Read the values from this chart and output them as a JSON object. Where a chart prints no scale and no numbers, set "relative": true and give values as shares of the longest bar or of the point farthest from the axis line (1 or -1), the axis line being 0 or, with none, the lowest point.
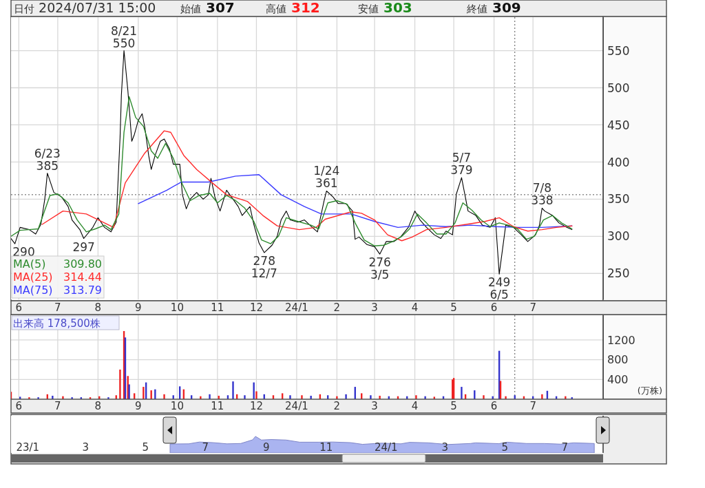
{
  "chart_data": [
    {
      "type": "line",
      "title": "日付 2024/07/31 15:00",
      "annotations": [
        "始値 307",
        "高値 312",
        "安値 303",
        "終値 309",
        {
          "text": "8/21\n550",
          "x": "2023-08-21",
          "y": 550
        },
        {
          "text": "6/23\n385",
          "x": "2023-06-23",
          "y": 385
        },
        {
          "text": "1/24\n361",
          "x": "2024-01-24",
          "y": 361
        },
        {
          "text": "5/7\n379",
          "x": "2024-05-07",
          "y": 379
        },
        {
          "text": "7/8\n338",
          "x": "2024-07-08",
          "y": 338
        },
        {
          "text": "290",
          "x": "2023-05-29",
          "y": 290
        },
        {
          "text": "297",
          "x": "2023-07-21",
          "y": 297
        },
        {
          "text": "278\n12/7",
          "x": "2023-12-07",
          "y": 278
        },
        {
          "text": "276\n3/5",
          "x": "2024-03-05",
          "y": 276
        },
        {
          "text": "249\n6/5",
          "x": "2024-06-05",
          "y": 249
        }
      ],
      "series": [
        {
          "color": "#000000",
          "x": [
            "2023-05-26",
            "2023-05-29",
            "2023-06-02",
            "2023-06-09",
            "2023-06-14",
            "2023-06-18",
            "2023-06-21",
            "2023-06-23",
            "2023-06-28",
            "2023-07-04",
            "2023-07-09",
            "2023-07-12",
            "2023-07-18",
            "2023-07-21",
            "2023-07-28",
            "2023-08-01",
            "2023-08-06",
            "2023-08-11",
            "2023-08-15",
            "2023-08-18",
            "2023-08-19",
            "2023-08-21",
            "2023-08-24",
            "2023-08-27",
            "2023-08-29",
            "2023-09-01",
            "2023-09-04",
            "2023-09-06",
            "2023-09-09",
            "2023-09-11",
            "2023-09-14",
            "2023-09-18",
            "2023-09-21",
            "2023-09-25",
            "2023-09-28",
            "2023-10-03",
            "2023-10-05",
            "2023-10-08",
            "2023-10-11",
            "2023-10-16",
            "2023-10-21",
            "2023-10-25",
            "2023-10-27",
            "2023-10-30",
            "2023-11-03",
            "2023-11-08",
            "2023-11-13",
            "2023-11-17",
            "2023-11-20",
            "2023-11-26",
            "2023-11-29",
            "2023-12-03",
            "2023-12-07",
            "2023-12-13",
            "2023-12-17",
            "2023-12-20",
            "2023-12-24",
            "2023-12-27",
            "2024-01-02",
            "2024-01-07",
            "2024-01-13",
            "2024-01-17",
            "2024-01-22",
            "2024-01-24",
            "2024-01-29",
            "2024-02-02",
            "2024-02-08",
            "2024-02-13",
            "2024-02-15",
            "2024-02-18",
            "2024-02-24",
            "2024-03-01",
            "2024-03-05",
            "2024-03-10",
            "2024-03-16",
            "2024-03-21",
            "2024-03-27",
            "2024-04-01",
            "2024-04-05",
            "2024-04-10",
            "2024-04-16",
            "2024-04-21",
            "2024-04-25",
            "2024-04-30",
            "2024-05-03",
            "2024-05-07",
            "2024-05-12",
            "2024-05-18",
            "2024-05-23",
            "2024-05-29",
            "2024-06-02",
            "2024-06-05",
            "2024-06-10",
            "2024-06-16",
            "2024-06-22",
            "2024-06-27",
            "2024-07-03",
            "2024-07-06",
            "2024-07-08",
            "2024-07-10",
            "2024-07-16",
            "2024-07-21",
            "2024-07-27",
            "2024-07-31"
          ],
          "values": [
            297,
            290,
            312,
            309,
            303,
            316,
            350,
            385,
            359,
            353,
            340,
            322,
            309,
            297,
            312,
            325,
            312,
            306,
            319,
            434,
            490,
            550,
            496,
            428,
            437,
            456,
            465,
            447,
            409,
            390,
            409,
            428,
            431,
            418,
            397,
            397,
            356,
            337,
            350,
            359,
            350,
            356,
            378,
            353,
            334,
            362,
            350,
            340,
            328,
            340,
            316,
            291,
            278,
            288,
            300,
            322,
            334,
            322,
            319,
            322,
            312,
            306,
            347,
            361,
            353,
            344,
            344,
            334,
            296,
            299,
            289,
            286,
            276,
            293,
            293,
            299,
            312,
            334,
            322,
            312,
            302,
            297,
            307,
            302,
            357,
            379,
            334,
            328,
            315,
            312,
            325,
            249,
            315,
            312,
            302,
            293,
            302,
            315,
            338,
            334,
            328,
            318,
            312,
            309
          ]
        },
        {
          "name": "MA(5) 309.80",
          "color": "#2e8b2e",
          "x": [
            "2023-05-26",
            "2023-06-02",
            "2023-06-09",
            "2023-06-16",
            "2023-06-21",
            "2023-06-25",
            "2023-07-01",
            "2023-07-09",
            "2023-07-16",
            "2023-07-23",
            "2023-07-30",
            "2023-08-06",
            "2023-08-11",
            "2023-08-17",
            "2023-08-21",
            "2023-08-25",
            "2023-08-30",
            "2023-09-05",
            "2023-09-11",
            "2023-09-16",
            "2023-09-22",
            "2023-09-28",
            "2023-10-05",
            "2023-10-11",
            "2023-10-18",
            "2023-10-26",
            "2023-11-01",
            "2023-11-08",
            "2023-11-15",
            "2023-11-22",
            "2023-11-29",
            "2023-12-05",
            "2023-12-12",
            "2023-12-18",
            "2023-12-24",
            "2024-01-02",
            "2024-01-12",
            "2024-01-18",
            "2024-01-25",
            "2024-02-01",
            "2024-02-09",
            "2024-02-15",
            "2024-02-22",
            "2024-03-01",
            "2024-03-08",
            "2024-03-15",
            "2024-03-22",
            "2024-03-28",
            "2024-04-03",
            "2024-04-10",
            "2024-04-18",
            "2024-04-25",
            "2024-05-02",
            "2024-05-08",
            "2024-05-15",
            "2024-05-22",
            "2024-05-29",
            "2024-06-05",
            "2024-06-12",
            "2024-06-19",
            "2024-06-26",
            "2024-07-02",
            "2024-07-09",
            "2024-07-16",
            "2024-07-23",
            "2024-07-31"
          ],
          "values": [
            300,
            308,
            309,
            310,
            335,
            355,
            357,
            345,
            322,
            306,
            310,
            315,
            309,
            330,
            440,
            488,
            460,
            448,
            415,
            405,
            425,
            405,
            370,
            348,
            355,
            358,
            345,
            355,
            348,
            338,
            320,
            295,
            290,
            300,
            325,
            320,
            315,
            310,
            345,
            348,
            343,
            318,
            295,
            287,
            288,
            293,
            300,
            310,
            330,
            318,
            303,
            303,
            318,
            345,
            335,
            322,
            313,
            318,
            315,
            310,
            296,
            300,
            322,
            328,
            318,
            310
          ]
        },
        {
          "name": "MA(25) 314.44",
          "color": "#ff2a2a",
          "x": [
            "2023-06-19",
            "2023-07-05",
            "2023-07-23",
            "2023-08-13",
            "2023-08-22",
            "2023-09-06",
            "2023-09-21",
            "2023-09-26",
            "2023-10-06",
            "2023-10-16",
            "2023-10-28",
            "2023-11-08",
            "2023-11-24",
            "2023-12-06",
            "2023-12-17",
            "2024-01-03",
            "2024-01-16",
            "2024-01-23",
            "2024-02-12",
            "2024-02-20",
            "2024-03-01",
            "2024-03-11",
            "2024-03-22",
            "2024-03-30",
            "2024-04-10",
            "2024-04-25",
            "2024-05-14",
            "2024-05-25",
            "2024-06-05",
            "2024-06-16",
            "2024-06-27",
            "2024-07-08",
            "2024-07-19",
            "2024-07-31"
          ],
          "values": [
            316,
            334,
            330,
            312,
            372,
            412,
            442,
            440,
            409,
            390,
            372,
            356,
            347,
            328,
            314,
            309,
            312,
            323,
            333,
            331,
            322,
            302,
            294,
            299,
            309,
            312,
            317,
            320,
            325,
            313,
            307,
            309,
            312,
            314
          ]
        },
        {
          "name": "MA(75) 313.79",
          "color": "#3a3aff",
          "x": [
            "2023-09-01",
            "2023-09-23",
            "2023-10-04",
            "2023-10-25",
            "2023-11-15",
            "2023-12-03",
            "2023-12-20",
            "2024-01-07",
            "2024-01-20",
            "2024-02-12",
            "2024-03-01",
            "2024-03-19",
            "2024-04-07",
            "2024-04-25",
            "2024-05-14",
            "2024-06-02",
            "2024-06-20",
            "2024-07-08",
            "2024-07-31"
          ],
          "values": [
            344,
            362,
            373,
            373,
            381,
            383,
            356,
            340,
            330,
            330,
            320,
            312,
            315,
            313,
            315,
            313,
            312,
            312,
            314
          ]
        }
      ],
      "xlim": [
        "2023-05-26",
        "2024-08-24"
      ],
      "xticks": [
        {
          "value": "2023-06-01",
          "label": "6"
        },
        {
          "value": "2023-07-01",
          "label": "7"
        },
        {
          "value": "2023-08-01",
          "label": "8"
        },
        {
          "value": "2023-09-01",
          "label": "9"
        },
        {
          "value": "2023-10-01",
          "label": "10"
        },
        {
          "value": "2023-11-01",
          "label": "11"
        },
        {
          "value": "2023-12-01",
          "label": "12"
        },
        {
          "value": "2024-01-01",
          "label": "24/1"
        },
        {
          "value": "2024-02-01",
          "label": "2"
        },
        {
          "value": "2024-03-01",
          "label": "3"
        },
        {
          "value": "2024-04-01",
          "label": "4"
        },
        {
          "value": "2024-05-01",
          "label": "5"
        },
        {
          "value": "2024-06-01",
          "label": "6"
        },
        {
          "value": "2024-07-01",
          "label": "7"
        }
      ],
      "ylim": [
        215,
        595
      ],
      "yticks": [
        250,
        300,
        350,
        400,
        450,
        500,
        550
      ],
      "grid": true,
      "legend": "bottom left",
      "ref_lines": [
        {
          "axis": "y",
          "value": 356,
          "line_style": "dotted"
        },
        {
          "axis": "x",
          "value": "2024-06-17",
          "line_style": "dotted"
        }
      ]
    },
    {
      "type": "bar",
      "title": "出来高 178,500株",
      "ylabel": "(万株)",
      "x": [
        "2023-05-26",
        "2023-06-02",
        "2023-06-09",
        "2023-06-16",
        "2023-06-23",
        "2023-06-27",
        "2023-07-05",
        "2023-07-12",
        "2023-07-19",
        "2023-07-26",
        "2023-08-02",
        "2023-08-09",
        "2023-08-15",
        "2023-08-18",
        "2023-08-21",
        "2023-08-22",
        "2023-08-24",
        "2023-08-25",
        "2023-08-29",
        "2023-09-05",
        "2023-09-07",
        "2023-09-11",
        "2023-09-14",
        "2023-09-21",
        "2023-09-28",
        "2023-10-03",
        "2023-10-06",
        "2023-10-12",
        "2023-10-19",
        "2023-10-26",
        "2023-11-02",
        "2023-11-09",
        "2023-11-13",
        "2023-11-16",
        "2023-11-22",
        "2023-11-29",
        "2023-12-01",
        "2023-12-07",
        "2023-12-14",
        "2023-12-21",
        "2023-12-27",
        "2024-01-05",
        "2024-01-12",
        "2024-01-19",
        "2024-01-25",
        "2024-02-01",
        "2024-02-08",
        "2024-02-15",
        "2024-02-20",
        "2024-02-27",
        "2024-03-05",
        "2024-03-12",
        "2024-03-19",
        "2024-03-26",
        "2024-04-02",
        "2024-04-09",
        "2024-04-16",
        "2024-04-23",
        "2024-04-30",
        "2024-05-01",
        "2024-05-07",
        "2024-05-10",
        "2024-05-17",
        "2024-05-24",
        "2024-05-31",
        "2024-06-05",
        "2024-06-06",
        "2024-06-10",
        "2024-06-17",
        "2024-06-24",
        "2024-07-01",
        "2024-07-08",
        "2024-07-12",
        "2024-07-19",
        "2024-07-26",
        "2024-07-31"
      ],
      "values": [
        150,
        50,
        40,
        40,
        100,
        70,
        60,
        40,
        40,
        40,
        60,
        40,
        80,
        600,
        1380,
        1250,
        470,
        300,
        120,
        250,
        340,
        180,
        200,
        100,
        80,
        260,
        200,
        80,
        60,
        100,
        70,
        80,
        360,
        100,
        80,
        340,
        160,
        100,
        80,
        120,
        80,
        80,
        70,
        100,
        80,
        60,
        100,
        250,
        120,
        80,
        70,
        60,
        60,
        60,
        80,
        60,
        50,
        60,
        400,
        430,
        250,
        100,
        180,
        80,
        60,
        980,
        370,
        60,
        80,
        60,
        60,
        100,
        170,
        60,
        60,
        40
      ],
      "colors": [
        "#ee2222",
        "#3333cc",
        "#ee2222",
        "#3333cc",
        "#ee2222",
        "#3333cc",
        "#ee2222",
        "#3333cc",
        "#3333cc",
        "#ee2222",
        "#ee2222",
        "#3333cc",
        "#ee2222",
        "#ee2222",
        "#ee2222",
        "#3333cc",
        "#ee2222",
        "#3333cc",
        "#ee2222",
        "#ee2222",
        "#3333cc",
        "#ee2222",
        "#3333cc",
        "#ee2222",
        "#3333cc",
        "#3333cc",
        "#ee2222",
        "#3333cc",
        "#ee2222",
        "#3333cc",
        "#ee2222",
        "#3333cc",
        "#3333cc",
        "#ee2222",
        "#3333cc",
        "#3333cc",
        "#ee2222",
        "#3333cc",
        "#ee2222",
        "#ee2222",
        "#3333cc",
        "#ee2222",
        "#3333cc",
        "#ee2222",
        "#3333cc",
        "#ee2222",
        "#3333cc",
        "#3333cc",
        "#ee2222",
        "#3333cc",
        "#ee2222",
        "#3333cc",
        "#ee2222",
        "#3333cc",
        "#ee2222",
        "#3333cc",
        "#ee2222",
        "#3333cc",
        "#ee2222",
        "#ee2222",
        "#3333cc",
        "#ee2222",
        "#3333cc",
        "#ee2222",
        "#3333cc",
        "#3333cc",
        "#ee2222",
        "#ee2222",
        "#3333cc",
        "#ee2222",
        "#3333cc",
        "#ee2222",
        "#3333cc",
        "#3333cc",
        "#ee2222",
        "#3333cc"
      ],
      "xlim": [
        "2023-05-26",
        "2024-08-24"
      ],
      "xticks": [
        {
          "value": "2023-06-01",
          "label": "6"
        },
        {
          "value": "2023-07-01",
          "label": "7"
        },
        {
          "value": "2023-08-01",
          "label": "8"
        },
        {
          "value": "2023-09-01",
          "label": "9"
        },
        {
          "value": "2023-10-01",
          "label": "10"
        },
        {
          "value": "2023-11-01",
          "label": "11"
        },
        {
          "value": "2023-12-01",
          "label": "12"
        },
        {
          "value": "2024-01-01",
          "label": "24/1"
        },
        {
          "value": "2024-02-01",
          "label": "2"
        },
        {
          "value": "2024-03-01",
          "label": "3"
        },
        {
          "value": "2024-04-01",
          "label": "4"
        },
        {
          "value": "2024-05-01",
          "label": "5"
        },
        {
          "value": "2024-06-01",
          "label": "6"
        },
        {
          "value": "2024-07-01",
          "label": "7"
        }
      ],
      "ylim": [
        0,
        1700
      ],
      "yticks": [
        400,
        800,
        1200
      ],
      "grid": true,
      "ref_lines": [
        {
          "axis": "x",
          "value": "2024-06-17",
          "line_style": "dotted"
        }
      ]
    },
    {
      "type": "area",
      "relative": true,
      "color": "#aab4f0",
      "x": [
        "2023-05-26",
        "2023-06-14",
        "2023-06-25",
        "2023-07-09",
        "2023-07-23",
        "2023-08-06",
        "2023-08-18",
        "2023-08-21",
        "2023-08-27",
        "2023-09-06",
        "2023-09-21",
        "2023-10-05",
        "2023-10-25",
        "2023-11-08",
        "2023-11-26",
        "2023-12-08",
        "2023-12-27",
        "2024-01-16",
        "2024-01-25",
        "2024-02-13",
        "2024-03-04",
        "2024-03-27",
        "2024-04-01",
        "2024-04-25",
        "2024-05-03",
        "2024-05-23",
        "2024-06-10",
        "2024-06-27",
        "2024-07-10",
        "2024-07-31"
      ],
      "values": [
        0.54,
        0.55,
        0.66,
        0.62,
        0.55,
        0.57,
        0.79,
        1,
        0.78,
        0.81,
        0.78,
        0.65,
        0.65,
        0.66,
        0.62,
        0.52,
        0.59,
        0.55,
        0.64,
        0.61,
        0.51,
        0.57,
        0.61,
        0.56,
        0.65,
        0.57,
        0.57,
        0.53,
        0.61,
        0.57
      ],
      "xlim": [
        "2022-12-15",
        "2024-08-09"
      ],
      "xticks": [
        {
          "value": "2023-01-01",
          "label": "23/1"
        },
        {
          "value": "2023-03-01",
          "label": "3"
        },
        {
          "value": "2023-05-01",
          "label": "5"
        },
        {
          "value": "2023-07-01",
          "label": "7"
        },
        {
          "value": "2023-09-01",
          "label": "9"
        },
        {
          "value": "2023-11-01",
          "label": "11"
        },
        {
          "value": "2024-01-01",
          "label": "24/1"
        },
        {
          "value": "2024-03-01",
          "label": "3"
        },
        {
          "value": "2024-05-01",
          "label": "5"
        },
        {
          "value": "2024-07-01",
          "label": "7"
        }
      ],
      "tick_labels": "x"
    }
  ]
}
